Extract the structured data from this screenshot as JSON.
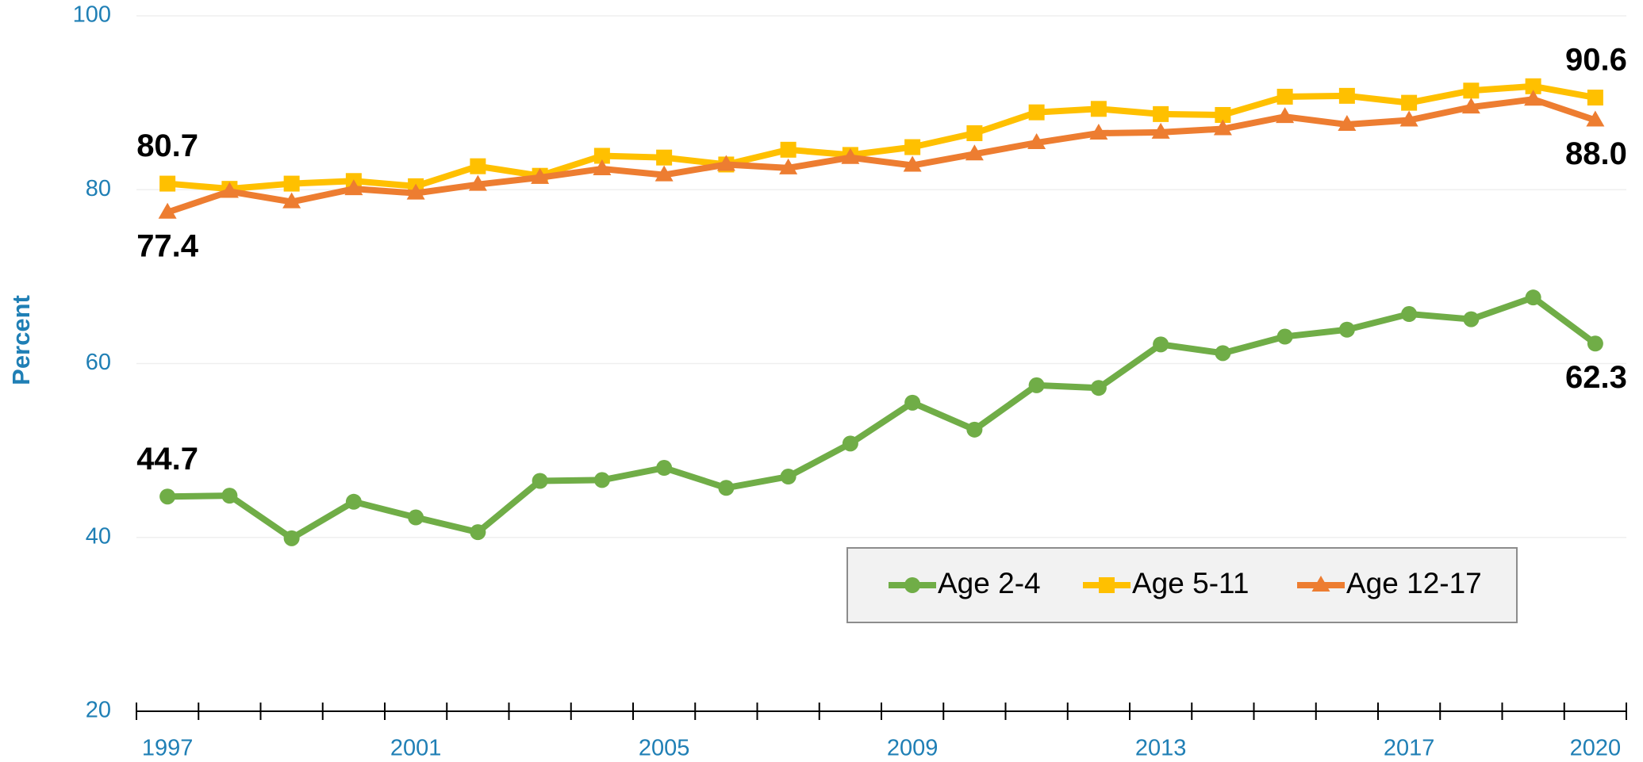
{
  "chart_data": {
    "type": "line",
    "y_label": "Percent",
    "categories": [
      "1997",
      null,
      null,
      null,
      "2001",
      null,
      null,
      null,
      "2005",
      null,
      null,
      null,
      "2009",
      null,
      null,
      null,
      "2013",
      null,
      null,
      null,
      "2017",
      null,
      null,
      "2020"
    ],
    "series": [
      {
        "name": "Age 2-4",
        "color": "#70ad47",
        "marker": "circle",
        "values": [
          44.7,
          44.8,
          39.9,
          44.1,
          42.3,
          40.6,
          46.5,
          46.6,
          48.0,
          45.7,
          47.0,
          50.8,
          55.5,
          52.4,
          57.5,
          57.2,
          62.2,
          61.2,
          63.1,
          63.9,
          65.7,
          65.1,
          67.6,
          62.3
        ],
        "value_labels": [
          "44.7",
          null,
          null,
          null,
          null,
          null,
          null,
          null,
          null,
          null,
          null,
          null,
          null,
          null,
          null,
          null,
          null,
          null,
          null,
          null,
          null,
          null,
          null,
          "62.3"
        ]
      },
      {
        "name": "Age 5-11",
        "color": "#ffc000",
        "marker": "square",
        "values": [
          80.7,
          80.1,
          80.7,
          81.0,
          80.4,
          82.7,
          81.6,
          83.9,
          83.7,
          82.9,
          84.6,
          84.0,
          84.9,
          86.5,
          88.9,
          89.3,
          88.7,
          88.6,
          90.7,
          90.8,
          90.0,
          91.4,
          91.9,
          90.6
        ],
        "value_labels": [
          "80.7",
          null,
          null,
          null,
          null,
          null,
          null,
          null,
          null,
          null,
          null,
          null,
          null,
          null,
          null,
          null,
          null,
          null,
          null,
          null,
          null,
          null,
          null,
          "90.6"
        ]
      },
      {
        "name": "Age 12-17",
        "color": "#ed7d31",
        "marker": "triangle",
        "values": [
          77.4,
          79.8,
          78.6,
          80.1,
          79.6,
          80.6,
          81.4,
          82.4,
          81.7,
          82.9,
          82.5,
          83.7,
          82.8,
          84.1,
          85.4,
          86.5,
          86.6,
          87.0,
          88.4,
          87.5,
          88.0,
          89.5,
          90.4,
          88.0
        ],
        "value_labels": [
          "77.4",
          null,
          null,
          null,
          null,
          null,
          null,
          null,
          null,
          null,
          null,
          null,
          null,
          null,
          null,
          null,
          null,
          null,
          null,
          null,
          null,
          null,
          null,
          "88.0"
        ]
      }
    ],
    "ylim": [
      20,
      100
    ],
    "yticks": [
      20,
      40,
      60,
      80,
      100
    ],
    "grid": true,
    "legend": "lower right"
  }
}
